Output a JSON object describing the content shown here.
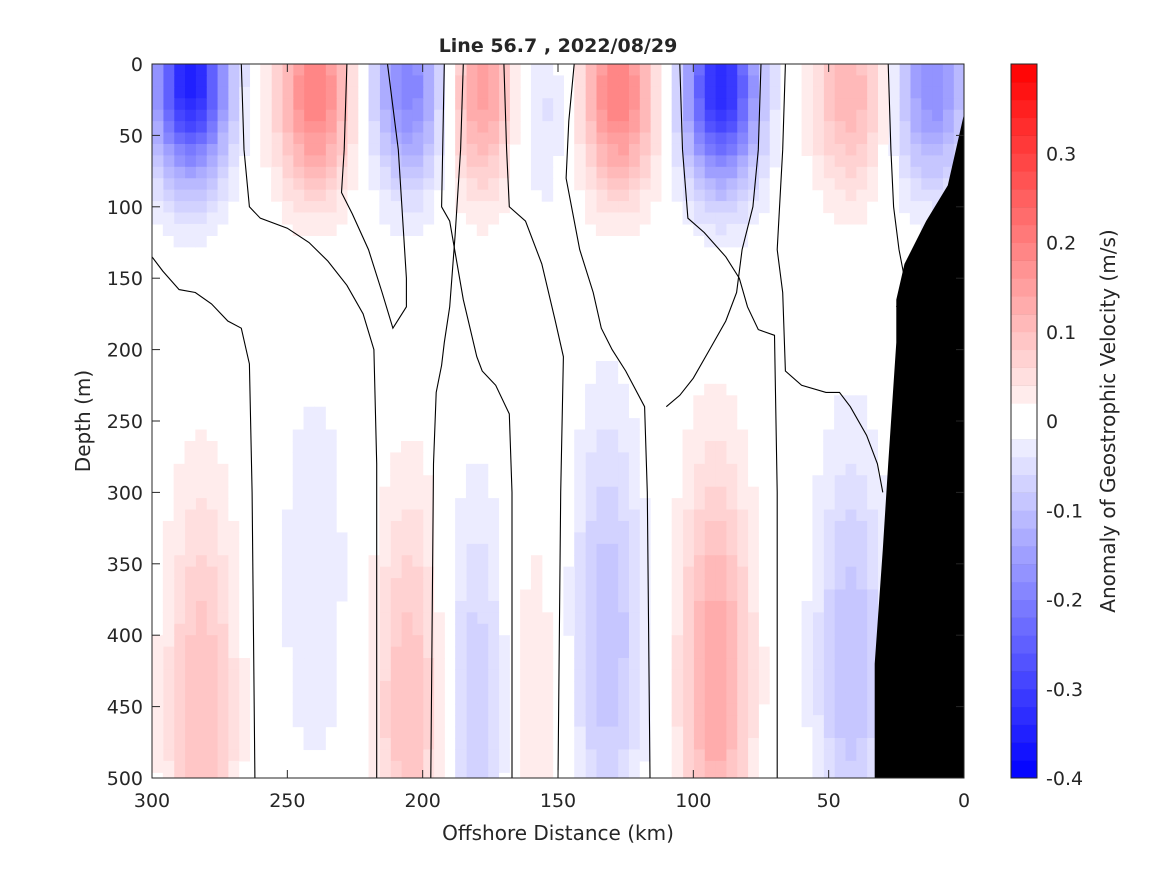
{
  "chart_data": {
    "type": "heatmap",
    "subtype": "filled-contour",
    "title": "Line 56.7 , 2022/08/29",
    "xlabel": "Offshore Distance (km)",
    "ylabel": "Depth (m)",
    "colorbar_label": "Anomaly of Geostrophic Velocity (m/s)",
    "x_reversed": true,
    "y_reversed": true,
    "xlim": [
      0,
      300
    ],
    "ylim": [
      0,
      500
    ],
    "clim": [
      -0.4,
      0.4
    ],
    "contour_step": 0.02,
    "x_ticks": [
      300,
      250,
      200,
      150,
      100,
      50,
      0
    ],
    "x_tick_labels": [
      "300",
      "250",
      "200",
      "150",
      "100",
      "50",
      "0"
    ],
    "y_ticks": [
      0,
      50,
      100,
      150,
      200,
      250,
      300,
      350,
      400,
      450,
      500
    ],
    "y_tick_labels": [
      "0",
      "50",
      "100",
      "150",
      "200",
      "250",
      "300",
      "350",
      "400",
      "450",
      "500"
    ],
    "colorbar_ticks": [
      0.3,
      0.2,
      0.1,
      0,
      -0.1,
      -0.2,
      -0.3,
      -0.4
    ],
    "colorbar_tick_labels": [
      "0.3",
      "0.2",
      "0.1",
      "0",
      "-0.1",
      "-0.2",
      "-0.3",
      "-0.4"
    ],
    "colors": {
      "negative": "#0000ff",
      "positive": "#ff0000",
      "zero": "#ffffff",
      "bathymetry": "#000000"
    },
    "shallow_cores": [
      {
        "x": 286,
        "depth": 10,
        "value": -0.36
      },
      {
        "x": 240,
        "depth": 20,
        "value": 0.2
      },
      {
        "x": 205,
        "depth": 15,
        "value": -0.2
      },
      {
        "x": 178,
        "depth": 20,
        "value": 0.16
      },
      {
        "x": 158,
        "depth": 30,
        "value": -0.06
      },
      {
        "x": 128,
        "depth": 20,
        "value": 0.2
      },
      {
        "x": 90,
        "depth": 15,
        "value": -0.34
      },
      {
        "x": 42,
        "depth": 20,
        "value": 0.12
      },
      {
        "x": 12,
        "depth": 15,
        "value": -0.18
      }
    ],
    "deep_cores": [
      {
        "x": 282,
        "depth": 450,
        "value": 0.1
      },
      {
        "x": 240,
        "depth": 360,
        "value": -0.04
      },
      {
        "x": 205,
        "depth": 450,
        "value": 0.1
      },
      {
        "x": 180,
        "depth": 450,
        "value": -0.08
      },
      {
        "x": 160,
        "depth": 450,
        "value": 0.04
      },
      {
        "x": 132,
        "depth": 400,
        "value": -0.1
      },
      {
        "x": 92,
        "depth": 430,
        "value": 0.14
      },
      {
        "x": 42,
        "depth": 420,
        "value": -0.1
      }
    ],
    "bathymetry_boundary": [
      {
        "x": 0,
        "depth": 35
      },
      {
        "x": 3,
        "depth": 60
      },
      {
        "x": 6,
        "depth": 85
      },
      {
        "x": 14,
        "depth": 110
      },
      {
        "x": 22,
        "depth": 140
      },
      {
        "x": 25,
        "depth": 165
      },
      {
        "x": 25,
        "depth": 170
      },
      {
        "x": 25,
        "depth": 195
      },
      {
        "x": 28,
        "depth": 280
      },
      {
        "x": 30,
        "depth": 340
      },
      {
        "x": 33,
        "depth": 420
      },
      {
        "x": 33,
        "depth": 500
      }
    ]
  }
}
